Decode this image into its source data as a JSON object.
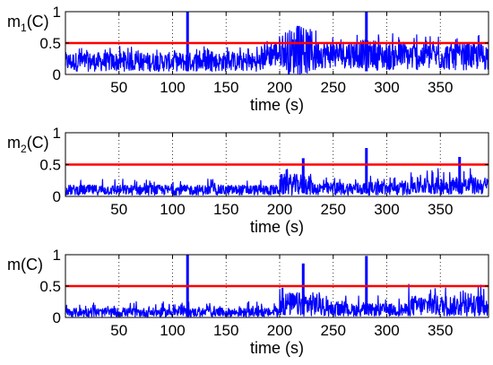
{
  "figure": {
    "colors": {
      "signal": "#0000ff",
      "threshold": "#ff0000",
      "axes": "#000000",
      "grid": "#000000"
    }
  },
  "chart_data": [
    {
      "type": "line",
      "ylabel": {
        "main": "m",
        "sub": "1",
        "tail": "(C)"
      },
      "xlabel": "time (s)",
      "xlim": [
        0,
        395
      ],
      "ylim": [
        0,
        1
      ],
      "xticks": [
        50,
        100,
        150,
        200,
        250,
        300,
        350
      ],
      "yticks": [
        0,
        0.5,
        1
      ],
      "ytick_labels": [
        "0",
        "0.5",
        "1"
      ],
      "grid": "vertical dotted at x ticks",
      "threshold": 0.5,
      "series": [
        {
          "style": "dense noisy band",
          "segments": [
            {
              "from": 0,
              "to": 185,
              "low": 0.05,
              "high": 0.35,
              "peak": 0.45
            },
            {
              "from": 185,
              "to": 205,
              "low": 0.12,
              "high": 0.55,
              "peak": 0.65
            },
            {
              "from": 205,
              "to": 235,
              "low": 0.0,
              "high": 0.72,
              "peak": 0.78
            },
            {
              "from": 235,
              "to": 290,
              "low": 0.1,
              "high": 0.55,
              "peak": 0.65
            },
            {
              "from": 290,
              "to": 395,
              "low": 0.07,
              "high": 0.5,
              "peak": 0.65
            }
          ],
          "spikes": [
            {
              "x": 114,
              "y": 1.0
            },
            {
              "x": 281,
              "y": 1.0
            }
          ]
        }
      ]
    },
    {
      "type": "line",
      "ylabel": {
        "main": "m",
        "sub": "2",
        "tail": "(C)"
      },
      "xlabel": "time (s)",
      "xlim": [
        0,
        395
      ],
      "ylim": [
        0,
        1
      ],
      "xticks": [
        50,
        100,
        150,
        200,
        250,
        300,
        350
      ],
      "yticks": [
        0,
        0.5,
        1
      ],
      "ytick_labels": [
        "0",
        "0.5",
        "1"
      ],
      "grid": "vertical dotted at x ticks",
      "threshold": 0.5,
      "series": [
        {
          "style": "dense noisy band",
          "segments": [
            {
              "from": 0,
              "to": 200,
              "low": 0.02,
              "high": 0.18,
              "peak": 0.28
            },
            {
              "from": 200,
              "to": 230,
              "low": 0.02,
              "high": 0.35,
              "peak": 0.6
            },
            {
              "from": 230,
              "to": 320,
              "low": 0.02,
              "high": 0.22,
              "peak": 0.33
            },
            {
              "from": 320,
              "to": 395,
              "low": 0.03,
              "high": 0.3,
              "peak": 0.45
            }
          ],
          "spikes": [
            {
              "x": 222,
              "y": 0.6
            },
            {
              "x": 281,
              "y": 0.76
            },
            {
              "x": 368,
              "y": 0.62
            }
          ]
        }
      ]
    },
    {
      "type": "line",
      "ylabel": {
        "main": "m",
        "sub": "",
        "tail": "(C)"
      },
      "xlabel": "time (s)",
      "xlim": [
        0,
        395
      ],
      "ylim": [
        0,
        1
      ],
      "xticks": [
        50,
        100,
        150,
        200,
        250,
        300,
        350
      ],
      "yticks": [
        0,
        0.5,
        1
      ],
      "ytick_labels": [
        "0",
        "0.5",
        "1"
      ],
      "grid": "vertical dotted at x ticks",
      "threshold": 0.5,
      "series": [
        {
          "style": "dense noisy band",
          "segments": [
            {
              "from": 0,
              "to": 200,
              "low": 0.01,
              "high": 0.15,
              "peak": 0.25
            },
            {
              "from": 200,
              "to": 240,
              "low": 0.02,
              "high": 0.4,
              "peak": 0.55
            },
            {
              "from": 240,
              "to": 320,
              "low": 0.02,
              "high": 0.22,
              "peak": 0.35
            },
            {
              "from": 320,
              "to": 395,
              "low": 0.02,
              "high": 0.35,
              "peak": 0.55
            }
          ],
          "spikes": [
            {
              "x": 114,
              "y": 1.0
            },
            {
              "x": 222,
              "y": 0.86
            },
            {
              "x": 281,
              "y": 0.98
            }
          ]
        }
      ]
    }
  ]
}
